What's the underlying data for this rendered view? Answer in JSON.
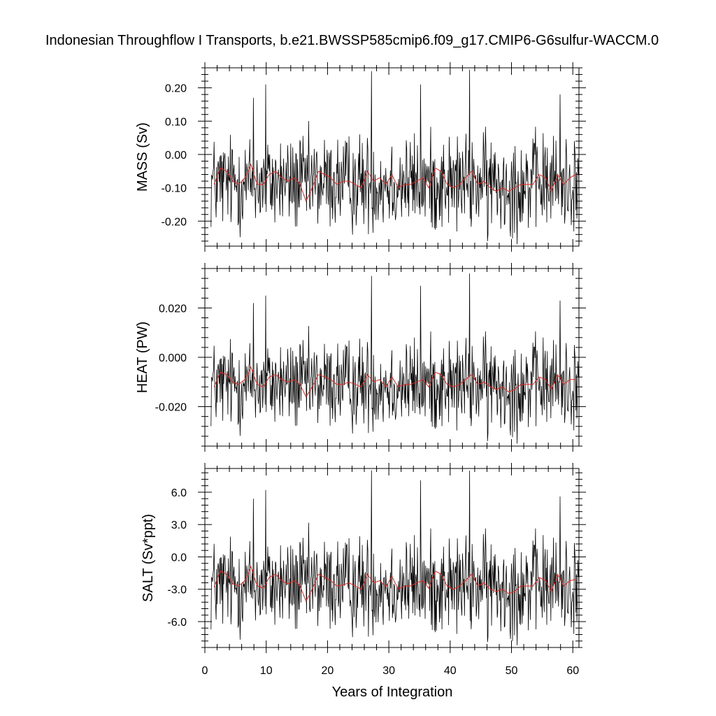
{
  "title": "Indonesian Throughflow I Transports, b.e21.BWSSP585cmip6.f09_g17.CMIP6-G6sulfur-WACCM.0",
  "colors": {
    "monthly": "#000000",
    "annual": "#e8241c"
  },
  "xaxis": {
    "label": "Years of Integration",
    "range": [
      0,
      61
    ],
    "ticks": [
      0,
      10,
      20,
      30,
      40,
      50,
      60
    ],
    "tick_labels": [
      "0",
      "10",
      "20",
      "30",
      "40",
      "50",
      "60"
    ]
  },
  "chart_data": [
    {
      "type": "line",
      "ylabel": "MASS (Sv)",
      "ylim": [
        -0.275,
        0.26
      ],
      "yticks": [
        -0.2,
        -0.1,
        0.0,
        0.1,
        0.2
      ],
      "ytick_labels": [
        "-0.20",
        "-0.10",
        "0.00",
        "0.10",
        "0.20"
      ],
      "series": [
        {
          "kind": "monthly",
          "mean": -0.085,
          "std": 0.09,
          "peaks": [
            [
              7.9,
              0.17
            ],
            [
              9.9,
              0.21
            ],
            [
              27.2,
              0.25
            ],
            [
              35.2,
              0.21
            ],
            [
              43.2,
              0.26
            ],
            [
              57.9,
              0.18
            ],
            [
              50.9,
              -0.27
            ],
            [
              46.1,
              -0.26
            ]
          ]
        },
        {
          "kind": "annual",
          "x": [
            1.5,
            2.5,
            3.5,
            4.5,
            5.5,
            6.5,
            7.5,
            8.5,
            9.5,
            10.5,
            11.5,
            12.5,
            13.5,
            14.5,
            15.5,
            16.5,
            17.5,
            18.5,
            19.5,
            20.5,
            21.5,
            22.5,
            23.5,
            24.5,
            25.5,
            26.5,
            27.5,
            28.5,
            29.5,
            30.5,
            31.5,
            32.5,
            33.5,
            34.5,
            35.5,
            36.5,
            37.5,
            38.5,
            39.5,
            40.5,
            41.5,
            42.5,
            43.5,
            44.5,
            45.5,
            46.5,
            47.5,
            48.5,
            49.5,
            50.5,
            51.5,
            52.5,
            53.5,
            54.5,
            55.5,
            56.5,
            57.5,
            58.5,
            59.5,
            60.5
          ],
          "values": [
            -0.09,
            -0.04,
            -0.05,
            -0.08,
            -0.09,
            -0.07,
            -0.03,
            -0.09,
            -0.09,
            -0.06,
            -0.05,
            -0.07,
            -0.08,
            -0.07,
            -0.09,
            -0.14,
            -0.1,
            -0.05,
            -0.06,
            -0.07,
            -0.09,
            -0.08,
            -0.08,
            -0.09,
            -0.1,
            -0.05,
            -0.08,
            -0.07,
            -0.09,
            -0.06,
            -0.1,
            -0.09,
            -0.09,
            -0.08,
            -0.07,
            -0.1,
            -0.04,
            -0.05,
            -0.09,
            -0.1,
            -0.09,
            -0.07,
            -0.05,
            -0.09,
            -0.08,
            -0.1,
            -0.11,
            -0.1,
            -0.11,
            -0.1,
            -0.09,
            -0.09,
            -0.09,
            -0.06,
            -0.07,
            -0.11,
            -0.06,
            -0.09,
            -0.07,
            -0.06
          ]
        }
      ]
    },
    {
      "type": "line",
      "ylabel": "HEAT (PW)",
      "ylim": [
        -0.036,
        0.036
      ],
      "yticks": [
        -0.02,
        0.0,
        0.02
      ],
      "ytick_labels": [
        "-0.020",
        "0.000",
        "0.020"
      ],
      "series": [
        {
          "kind": "monthly",
          "mean": -0.011,
          "std": 0.0115,
          "peaks": [
            [
              7.9,
              0.022
            ],
            [
              9.9,
              0.025
            ],
            [
              27.2,
              0.033
            ],
            [
              35.2,
              0.029
            ],
            [
              43.2,
              0.034
            ],
            [
              57.9,
              0.023
            ],
            [
              50.9,
              -0.035
            ],
            [
              46.1,
              -0.034
            ]
          ]
        },
        {
          "kind": "annual",
          "x": [
            1.5,
            2.5,
            3.5,
            4.5,
            5.5,
            6.5,
            7.5,
            8.5,
            9.5,
            10.5,
            11.5,
            12.5,
            13.5,
            14.5,
            15.5,
            16.5,
            17.5,
            18.5,
            19.5,
            20.5,
            21.5,
            22.5,
            23.5,
            24.5,
            25.5,
            26.5,
            27.5,
            28.5,
            29.5,
            30.5,
            31.5,
            32.5,
            33.5,
            34.5,
            35.5,
            36.5,
            37.5,
            38.5,
            39.5,
            40.5,
            41.5,
            42.5,
            43.5,
            44.5,
            45.5,
            46.5,
            47.5,
            48.5,
            49.5,
            50.5,
            51.5,
            52.5,
            53.5,
            54.5,
            55.5,
            56.5,
            57.5,
            58.5,
            59.5,
            60.5
          ],
          "values": [
            -0.012,
            -0.006,
            -0.007,
            -0.01,
            -0.011,
            -0.009,
            -0.004,
            -0.011,
            -0.012,
            -0.008,
            -0.007,
            -0.009,
            -0.01,
            -0.009,
            -0.011,
            -0.016,
            -0.012,
            -0.007,
            -0.008,
            -0.009,
            -0.011,
            -0.011,
            -0.01,
            -0.011,
            -0.012,
            -0.007,
            -0.01,
            -0.009,
            -0.012,
            -0.008,
            -0.012,
            -0.011,
            -0.011,
            -0.01,
            -0.009,
            -0.012,
            -0.006,
            -0.007,
            -0.011,
            -0.012,
            -0.011,
            -0.009,
            -0.007,
            -0.011,
            -0.01,
            -0.012,
            -0.013,
            -0.012,
            -0.014,
            -0.013,
            -0.011,
            -0.011,
            -0.011,
            -0.008,
            -0.009,
            -0.013,
            -0.007,
            -0.011,
            -0.009,
            -0.009
          ]
        }
      ]
    },
    {
      "type": "line",
      "ylabel": "SALT (Sv*ppt)",
      "ylim": [
        -8.4,
        8.2
      ],
      "yticks": [
        -6,
        -3,
        0,
        3,
        6
      ],
      "ytick_labels": [
        "-6.0",
        "-3.0",
        "0.0",
        "3.0",
        "6.0"
      ],
      "series": [
        {
          "kind": "monthly",
          "mean": -2.6,
          "std": 2.8,
          "peaks": [
            [
              7.9,
              5.4
            ],
            [
              9.9,
              6.2
            ],
            [
              27.2,
              8.1
            ],
            [
              35.2,
              7.1
            ],
            [
              43.2,
              8.0
            ],
            [
              57.9,
              5.6
            ],
            [
              50.9,
              -8.2
            ],
            [
              46.1,
              -7.9
            ]
          ]
        },
        {
          "kind": "annual",
          "x": [
            1.5,
            2.5,
            3.5,
            4.5,
            5.5,
            6.5,
            7.5,
            8.5,
            9.5,
            10.5,
            11.5,
            12.5,
            13.5,
            14.5,
            15.5,
            16.5,
            17.5,
            18.5,
            19.5,
            20.5,
            21.5,
            22.5,
            23.5,
            24.5,
            25.5,
            26.5,
            27.5,
            28.5,
            29.5,
            30.5,
            31.5,
            32.5,
            33.5,
            34.5,
            35.5,
            36.5,
            37.5,
            38.5,
            39.5,
            40.5,
            41.5,
            42.5,
            43.5,
            44.5,
            45.5,
            46.5,
            47.5,
            48.5,
            49.5,
            50.5,
            51.5,
            52.5,
            53.5,
            54.5,
            55.5,
            56.5,
            57.5,
            58.5,
            59.5,
            60.5
          ],
          "values": [
            -2.8,
            -1.3,
            -1.6,
            -2.5,
            -2.7,
            -2.2,
            -0.9,
            -2.7,
            -2.9,
            -1.9,
            -1.6,
            -2.2,
            -2.5,
            -2.2,
            -2.7,
            -4.1,
            -3.0,
            -1.6,
            -1.9,
            -2.2,
            -2.7,
            -2.6,
            -2.4,
            -2.7,
            -3.0,
            -1.6,
            -2.4,
            -2.2,
            -2.8,
            -1.8,
            -3.0,
            -2.7,
            -2.7,
            -2.4,
            -2.2,
            -2.9,
            -1.3,
            -1.6,
            -2.7,
            -3.0,
            -2.7,
            -2.2,
            -1.6,
            -2.7,
            -2.4,
            -3.0,
            -3.2,
            -3.0,
            -3.4,
            -3.2,
            -2.7,
            -2.7,
            -2.7,
            -1.9,
            -2.2,
            -3.2,
            -1.6,
            -2.7,
            -2.2,
            -2.1
          ]
        }
      ]
    }
  ]
}
